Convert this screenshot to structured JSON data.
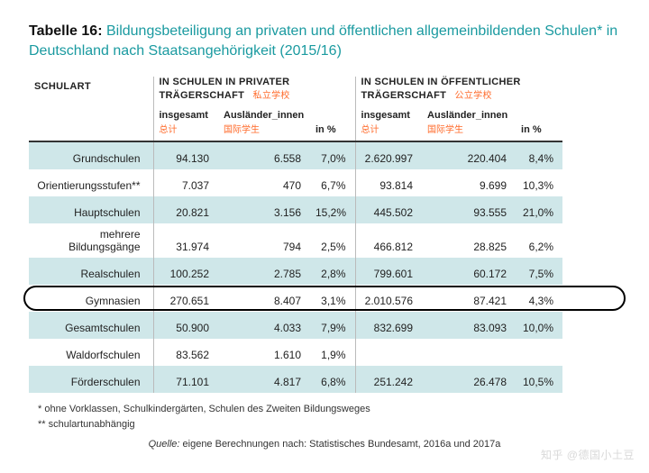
{
  "title": {
    "label": "Tabelle 16:",
    "text": "Bildungsbeteiligung an privaten und öffentlichen allgemeinbildenden Schulen* in Deutschland nach Staatsangehörigkeit (2015/16)"
  },
  "headers": {
    "schulart": "SCHULART",
    "group_private": "IN SCHULEN IN PRIVATER TRÄGERSCHAFT",
    "group_private_cjk": "私立学校",
    "group_public": "IN SCHULEN IN ÖFFENTLICHER TRÄGERSCHAFT",
    "group_public_cjk": "公立学校",
    "insgesamt": "insgesamt",
    "insgesamt_cjk": "总计",
    "auslaender": "Ausländer_innen",
    "auslaender_cjk": "国际学生",
    "pct": "in %"
  },
  "rows": [
    {
      "band": true,
      "label": "Grundschulen",
      "p_total": "94.130",
      "p_aus": "6.558",
      "p_pct": "7,0%",
      "o_total": "2.620.997",
      "o_aus": "220.404",
      "o_pct": "8,4%"
    },
    {
      "band": false,
      "label": "Orientierungsstufen**",
      "p_total": "7.037",
      "p_aus": "470",
      "p_pct": "6,7%",
      "o_total": "93.814",
      "o_aus": "9.699",
      "o_pct": "10,3%"
    },
    {
      "band": true,
      "label": "Hauptschulen",
      "p_total": "20.821",
      "p_aus": "3.156",
      "p_pct": "15,2%",
      "o_total": "445.502",
      "o_aus": "93.555",
      "o_pct": "21,0%"
    },
    {
      "band": false,
      "label": "mehrere Bildungsgänge",
      "p_total": "31.974",
      "p_aus": "794",
      "p_pct": "2,5%",
      "o_total": "466.812",
      "o_aus": "28.825",
      "o_pct": "6,2%"
    },
    {
      "band": true,
      "label": "Realschulen",
      "p_total": "100.252",
      "p_aus": "2.785",
      "p_pct": "2,8%",
      "o_total": "799.601",
      "o_aus": "60.172",
      "o_pct": "7,5%"
    },
    {
      "band": false,
      "label": "Gymnasien",
      "circled": true,
      "p_total": "270.651",
      "p_aus": "8.407",
      "p_pct": "3,1%",
      "o_total": "2.010.576",
      "o_aus": "87.421",
      "o_pct": "4,3%"
    },
    {
      "band": true,
      "label": "Gesamtschulen",
      "p_total": "50.900",
      "p_aus": "4.033",
      "p_pct": "7,9%",
      "o_total": "832.699",
      "o_aus": "83.093",
      "o_pct": "10,0%"
    },
    {
      "band": false,
      "label": "Waldorfschulen",
      "p_total": "83.562",
      "p_aus": "1.610",
      "p_pct": "1,9%",
      "o_total": "",
      "o_aus": "",
      "o_pct": ""
    },
    {
      "band": true,
      "label": "Förderschulen",
      "p_total": "71.101",
      "p_aus": "4.817",
      "p_pct": "6,8%",
      "o_total": "251.242",
      "o_aus": "26.478",
      "o_pct": "10,5%"
    }
  ],
  "footnotes": {
    "a": "*  ohne Vorklassen, Schulkindergärten, Schulen des Zweiten Bildungsweges",
    "b": "** schulartunabhängig"
  },
  "source": {
    "label": "Quelle:",
    "text": "eigene Berechnungen nach: Statistisches Bundesamt, 2016a und 2017a"
  },
  "watermark": "知乎 @德国小土豆"
}
